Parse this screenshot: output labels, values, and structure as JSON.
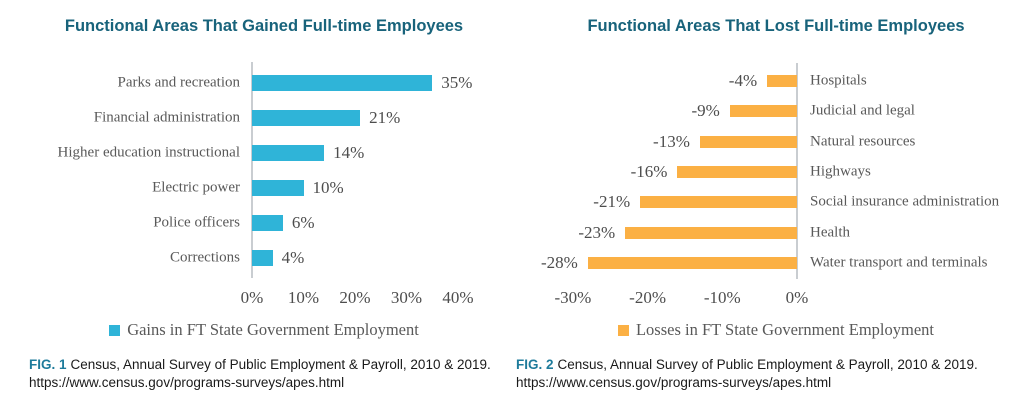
{
  "chart_data": [
    {
      "type": "bar",
      "orientation": "horizontal",
      "title": "Functional Areas That Gained Full-time Employees",
      "categories": [
        "Parks and recreation",
        "Financial administration",
        "Higher education instructional",
        "Electric power",
        "Police officers",
        "Corrections"
      ],
      "values": [
        35,
        21,
        14,
        10,
        6,
        4
      ],
      "value_labels": [
        "35%",
        "21%",
        "14%",
        "10%",
        "6%",
        "4%"
      ],
      "xlim": [
        0,
        40
      ],
      "xtick_values": [
        0,
        10,
        20,
        30,
        40
      ],
      "xtick_labels": [
        "0%",
        "10%",
        "20%",
        "30%",
        "40%"
      ],
      "legend": [
        "Gains in FT State Government Employment"
      ],
      "legend_position": "bottom",
      "bar_color": "#2FB4D8",
      "grid": false,
      "bars_extend": "right",
      "category_label_side": "left",
      "value_label_position": "outside-end"
    },
    {
      "type": "bar",
      "orientation": "horizontal",
      "title": "Functional Areas That Lost Full-time Employees",
      "categories": [
        "Hospitals",
        "Judicial and legal",
        "Natural resources",
        "Highways",
        "Social insurance administration",
        "Health",
        "Water transport and terminals"
      ],
      "values": [
        -4,
        -9,
        -13,
        -16,
        -21,
        -23,
        -28
      ],
      "value_labels": [
        "-4%",
        "-9%",
        "-13%",
        "-16%",
        "-21%",
        "-23%",
        "-28%"
      ],
      "xlim": [
        -30,
        0
      ],
      "xtick_values": [
        -30,
        -20,
        -10,
        0
      ],
      "xtick_labels": [
        "-30%",
        "-20%",
        "-10%",
        "0%"
      ],
      "legend": [
        "Losses in FT State Government Employment"
      ],
      "legend_position": "bottom",
      "bar_color": "#FBB044",
      "grid": false,
      "bars_extend": "left",
      "category_label_side": "right",
      "value_label_position": "outside-end"
    }
  ],
  "captions": [
    {
      "fig_label": "FIG. 1",
      "text": "Census, Annual Survey of Public Employment & Payroll, 2010 & 2019.",
      "url": "https://www.census.gov/programs-surveys/apes.html"
    },
    {
      "fig_label": "FIG. 2",
      "text": "Census, Annual Survey of Public Employment & Payroll, 2010 & 2019.",
      "url": "https://www.census.gov/programs-surveys/apes.html"
    }
  ],
  "colors": {
    "title_text": "#18637B",
    "fig_label_text": "#1E7B9B",
    "category_text": "#595959",
    "value_text": "#4D4D4D",
    "axis_line": "#C9CDD1",
    "caption_text": "#1A1A1A",
    "gain_bar": "#2FB4D8",
    "loss_bar": "#FBB044"
  }
}
